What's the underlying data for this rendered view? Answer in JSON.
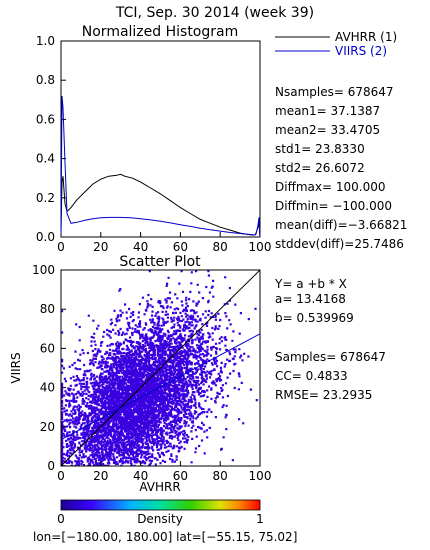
{
  "title": "TCI,  Sep. 30 2014 (week 39)",
  "colors": {
    "avhrr": "#000000",
    "viirs": "#0000cc",
    "scatter": "#3a00e0"
  },
  "chart_data": [
    {
      "type": "line",
      "title": "Normalized Histogram",
      "xlim": [
        0,
        100
      ],
      "ylim": [
        0,
        1.0
      ],
      "xticks": [
        0,
        20,
        40,
        60,
        80,
        100
      ],
      "yticks": [
        0.0,
        0.2,
        0.4,
        0.6,
        0.8,
        1.0
      ],
      "xtick_labels": [
        "0",
        "20",
        "40",
        "60",
        "80",
        "100"
      ],
      "ytick_labels": [
        "0.0",
        "0.2",
        "0.4",
        "0.6",
        "0.8",
        "1.0"
      ],
      "legend": {
        "placement": "right",
        "entries": [
          "AVHRR (1)",
          "VIIRS (2)"
        ]
      },
      "series": [
        {
          "name": "AVHRR (1)",
          "color": "#000000",
          "x": [
            0,
            0.5,
            1,
            2,
            3,
            5,
            8,
            12,
            16,
            20,
            24,
            28,
            30,
            32,
            36,
            40,
            45,
            50,
            55,
            60,
            65,
            70,
            75,
            80,
            85,
            90,
            93,
            96,
            97.5,
            98,
            99,
            99.5,
            100
          ],
          "y": [
            0.02,
            0.28,
            0.31,
            0.17,
            0.13,
            0.15,
            0.19,
            0.23,
            0.27,
            0.295,
            0.31,
            0.315,
            0.32,
            0.31,
            0.3,
            0.28,
            0.25,
            0.22,
            0.185,
            0.15,
            0.12,
            0.09,
            0.07,
            0.05,
            0.035,
            0.02,
            0.015,
            0.01,
            0.01,
            0.02,
            0.05,
            0.07,
            0.0
          ]
        },
        {
          "name": "VIIRS (2)",
          "color": "#0000cc",
          "x": [
            0,
            0.5,
            1,
            2,
            3,
            5,
            8,
            12,
            16,
            20,
            25,
            30,
            35,
            40,
            45,
            50,
            55,
            60,
            65,
            70,
            75,
            80,
            85,
            90,
            93,
            96,
            97.5,
            98,
            99,
            99.5,
            100
          ],
          "y": [
            0.02,
            0.72,
            0.66,
            0.38,
            0.12,
            0.07,
            0.075,
            0.085,
            0.093,
            0.098,
            0.1,
            0.1,
            0.098,
            0.093,
            0.087,
            0.08,
            0.072,
            0.063,
            0.054,
            0.045,
            0.037,
            0.03,
            0.023,
            0.018,
            0.015,
            0.012,
            0.01,
            0.015,
            0.06,
            0.1,
            0.0
          ]
        }
      ]
    },
    {
      "type": "scatter",
      "title": "Scatter Plot",
      "xlabel": "AVHRR",
      "ylabel": "VIIRS",
      "xlim": [
        0,
        100
      ],
      "ylim": [
        0,
        100
      ],
      "xticks": [
        0,
        20,
        40,
        60,
        80,
        100
      ],
      "yticks": [
        0,
        20,
        40,
        60,
        80,
        100
      ],
      "xtick_labels": [
        "0",
        "20",
        "40",
        "60",
        "80",
        "100"
      ],
      "ytick_labels": [
        "0",
        "20",
        "40",
        "60",
        "80",
        "100"
      ],
      "one_to_one_line": true,
      "fit_line": {
        "a": 13.4168,
        "b": 0.539969
      },
      "point_cloud": {
        "center": [
          37.1,
          33.5
        ],
        "spread": [
          23.8,
          26.6
        ],
        "correlation": 0.4833
      },
      "colorbar": {
        "label": "Density",
        "min": 0,
        "max": 1,
        "min_label": "0",
        "max_label": "1"
      }
    }
  ],
  "stats": [
    "Nsamples= 678647",
    "mean1=    37.1387",
    "mean2=    33.4705",
    "std1=     23.8330",
    "std2=     26.6072",
    "Diffmax=   100.000",
    "Diffmin=   −100.000",
    "mean(diff)=−3.66821",
    "stddev(diff)=25.7486"
  ],
  "regression": [
    "Y= a +b * X",
    "a= 13.4168",
    "b= 0.539969",
    "",
    "Samples= 678647",
    "CC=  0.4833",
    "RMSE= 23.2935"
  ],
  "footer": "lon=[−180.00, 180.00] lat=[−55.15, 75.02]"
}
